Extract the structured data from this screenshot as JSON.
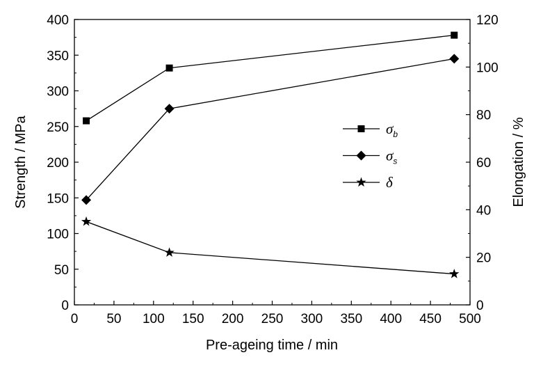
{
  "chart_data": {
    "type": "line",
    "title": "",
    "xlabel": "Pre-ageing time / min",
    "ylabel_left": "Strength / MPa",
    "ylabel_right": "Elongation / %",
    "xlim": [
      0,
      500
    ],
    "ylim_left": [
      0,
      400
    ],
    "ylim_right": [
      0,
      120
    ],
    "x_ticks": [
      "0",
      "50",
      "100",
      "150",
      "200",
      "250",
      "300",
      "350",
      "400",
      "450",
      "500"
    ],
    "y_left_ticks": [
      "0",
      "50",
      "100",
      "150",
      "200",
      "250",
      "300",
      "350",
      "400"
    ],
    "y_right_ticks": [
      "0",
      "20",
      "40",
      "60",
      "80",
      "100",
      "120"
    ],
    "grid": false,
    "legend_position": "center-right",
    "series": [
      {
        "name": "σb",
        "symbol": "σ",
        "subscript": "b",
        "marker": "square",
        "axis": "left",
        "x": [
          15,
          120,
          480
        ],
        "values": [
          258,
          332,
          378
        ]
      },
      {
        "name": "σs",
        "symbol": "σ",
        "subscript": "s",
        "marker": "diamond",
        "axis": "left",
        "x": [
          15,
          120,
          480
        ],
        "values": [
          147,
          275,
          345
        ]
      },
      {
        "name": "δ",
        "symbol": "δ",
        "subscript": "",
        "marker": "star",
        "axis": "right",
        "x": [
          15,
          120,
          480
        ],
        "values": [
          35,
          22,
          13
        ]
      }
    ],
    "colors": {
      "line": "#000000",
      "marker": "#000000"
    }
  }
}
